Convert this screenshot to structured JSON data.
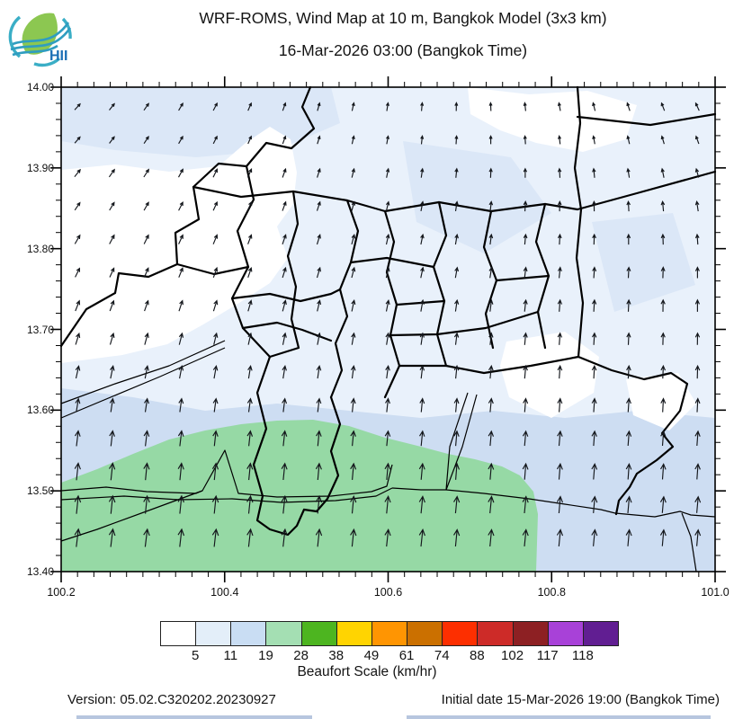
{
  "header": {
    "title": "WRF-ROMS, Wind Map at 10 m, Bangkok Model (3x3 km)",
    "subtitle": "16-Mar-2026 03:00 (Bangkok Time)",
    "logo_text": "HII"
  },
  "map": {
    "x_axis": {
      "min": 100.2,
      "max": 101.0,
      "ticks": [
        "100.2",
        "100.4",
        "100.6",
        "100.8",
        "101.0"
      ],
      "minor_step_deg": 0.02
    },
    "y_axis": {
      "min": 13.4,
      "max": 14.0,
      "ticks": [
        "14.00",
        "13.90",
        "13.80",
        "13.70",
        "13.60",
        "13.50",
        "13.40"
      ],
      "minor_step_deg": 0.02
    },
    "colors": {
      "pale_blue": "#e9f1fb",
      "pale_blue_dark": "#dbe7f7",
      "light_blue": "#cdddf2",
      "green": "#96d9a5",
      "white": "#ffffff",
      "boundary": "#000000",
      "arrow": "#14171c"
    },
    "fill_legend_meaning": {
      "white": "calm < 5 km/hr",
      "pale_blue": "5-11 km/hr",
      "light_blue": "11-19 km/hr",
      "green": "19-28 km/hr"
    },
    "wind_rows": [
      {
        "aL": 42,
        "aR": -25,
        "lL": 9,
        "lR": 9
      },
      {
        "aL": 40,
        "aR": -20,
        "lL": 9,
        "lR": 9
      },
      {
        "aL": 38,
        "aR": -15,
        "lL": 10,
        "lR": 10
      },
      {
        "aL": 34,
        "aR": -8,
        "lL": 10,
        "lR": 11
      },
      {
        "aL": 30,
        "aR": -4,
        "lL": 11,
        "lR": 11
      },
      {
        "aL": 26,
        "aR": 0,
        "lL": 11,
        "lR": 12
      },
      {
        "aL": 22,
        "aR": 0,
        "lL": 12,
        "lR": 13
      },
      {
        "aL": 17,
        "aR": 1,
        "lL": 13,
        "lR": 13
      },
      {
        "aL": 12,
        "aR": 2,
        "lL": 14,
        "lR": 14
      },
      {
        "aL": 9,
        "aR": 3,
        "lL": 15,
        "lR": 15
      },
      {
        "aL": 7,
        "aR": 4,
        "lL": 17,
        "lR": 16
      },
      {
        "aL": 6,
        "aR": 4,
        "lL": 19,
        "lR": 17
      },
      {
        "aL": 6,
        "aR": 5,
        "lL": 20,
        "lR": 18
      },
      {
        "aL": 7,
        "aR": 5,
        "lL": 20,
        "lR": 18
      }
    ]
  },
  "legend": {
    "caption": "Beaufort Scale (km/hr)",
    "labels": [
      "5",
      "11",
      "19",
      "28",
      "38",
      "49",
      "61",
      "74",
      "88",
      "102",
      "117",
      "118"
    ],
    "colors": [
      "#ffffff",
      "#e3eef9",
      "#c9ddf3",
      "#a4dfb3",
      "#4db520",
      "#ffd401",
      "#ff9502",
      "#cb7000",
      "#fd2f00",
      "#cd2b28",
      "#8d2023",
      "#a841d8",
      "#611e92"
    ]
  },
  "footer": {
    "version": "Version: 05.02.C320202.20230927",
    "initial_date": "Initial date 15-Mar-2026 19:00 (Bangkok Time)"
  }
}
